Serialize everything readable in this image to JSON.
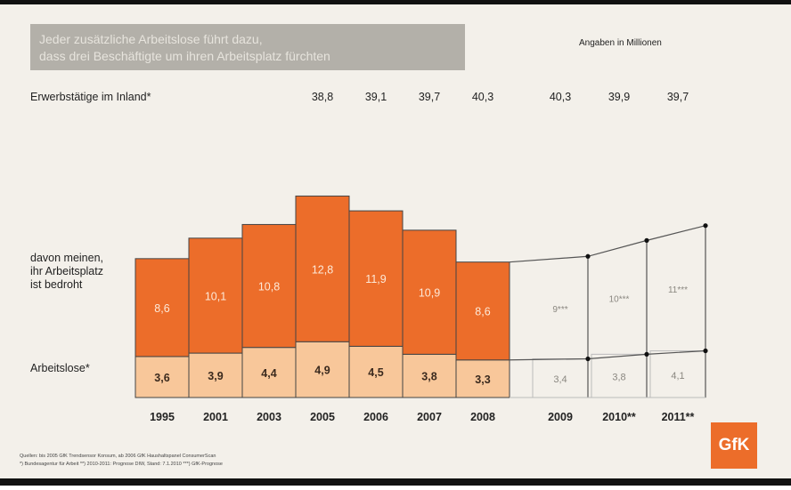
{
  "header": {
    "title_line1": "Jeder zusätzliche Arbeitslose führt dazu,",
    "title_line2": "dass drei Beschäftigte um ihren Arbeitsplatz fürchten",
    "unit_note": "Angaben in Millionen"
  },
  "row_labels": {
    "employed": "Erwerbstätige im Inland*",
    "threatened_line1": "davon meinen,",
    "threatened_line2": "ihr Arbeitsplatz",
    "threatened_line3": "ist bedroht",
    "unemployed": "Arbeitslose*"
  },
  "footer": {
    "source_line1": "Quellen: bis 2005 GfK Trendsensor Konsum, ab 2006 GfK Haushaltspanel ConsumerScan",
    "source_line2": "*) Bundesagentur für Arbeit   **) 2010-2011: Prognose DIW, Stand: 7.1.2010   ***) GfK-Prognose"
  },
  "logo_text": "GfK",
  "colors": {
    "threatened": "#ec6d2a",
    "unemployed": "#f8c79a",
    "outline": "#444444",
    "forecast_line": "#555555",
    "background": "#f3f0ea"
  },
  "chart_data": {
    "type": "bar",
    "stacked": true,
    "categories": [
      "1995",
      "2001",
      "2003",
      "2005",
      "2006",
      "2007",
      "2008",
      "2009",
      "2010**",
      "2011**"
    ],
    "series": [
      {
        "name": "Arbeitslose*",
        "values": [
          3.6,
          3.9,
          4.4,
          4.9,
          4.5,
          3.8,
          3.3,
          3.4,
          3.8,
          4.1
        ]
      },
      {
        "name": "davon meinen, ihr Arbeitsplatz ist bedroht",
        "values": [
          8.6,
          10.1,
          10.8,
          12.8,
          11.9,
          10.9,
          8.6,
          9,
          10,
          11
        ]
      }
    ],
    "threatened_labels": [
      "8,6",
      "10,1",
      "10,8",
      "12,8",
      "11,9",
      "10,9",
      "8,6",
      "9***",
      "10***",
      "11***"
    ],
    "unemployed_labels": [
      "3,6",
      "3,9",
      "4,4",
      "4,9",
      "4,5",
      "3,8",
      "3,3",
      "3,4",
      "3,8",
      "4,1"
    ],
    "employed_in_germany": {
      "categories": [
        "2005",
        "2006",
        "2007",
        "2008",
        "2009",
        "2010**",
        "2011**"
      ],
      "values": [
        38.8,
        39.1,
        39.7,
        40.3,
        40.3,
        39.9,
        39.7
      ],
      "labels": [
        "38,8",
        "39,1",
        "39,7",
        "40,3",
        "40,3",
        "39,9",
        "39,7"
      ]
    },
    "forecast_categories": [
      "2009",
      "2010**",
      "2011**"
    ]
  }
}
